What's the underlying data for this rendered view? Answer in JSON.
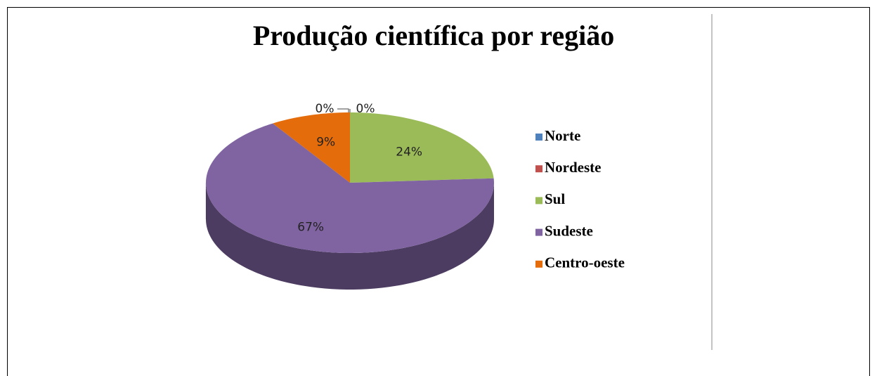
{
  "chart_data": {
    "type": "pie",
    "title": "Produção científica por região",
    "categories": [
      "Norte",
      "Nordeste",
      "Sul",
      "Sudeste",
      "Centro-oeste"
    ],
    "values": [
      0,
      0,
      24,
      67,
      9
    ],
    "value_labels": [
      "0%",
      "0%",
      "24%",
      "67%",
      "9%"
    ],
    "colors": [
      "#4f81bd",
      "#c0504d",
      "#9bbb59",
      "#8064a2",
      "#e46c0a"
    ],
    "legend": "right"
  }
}
